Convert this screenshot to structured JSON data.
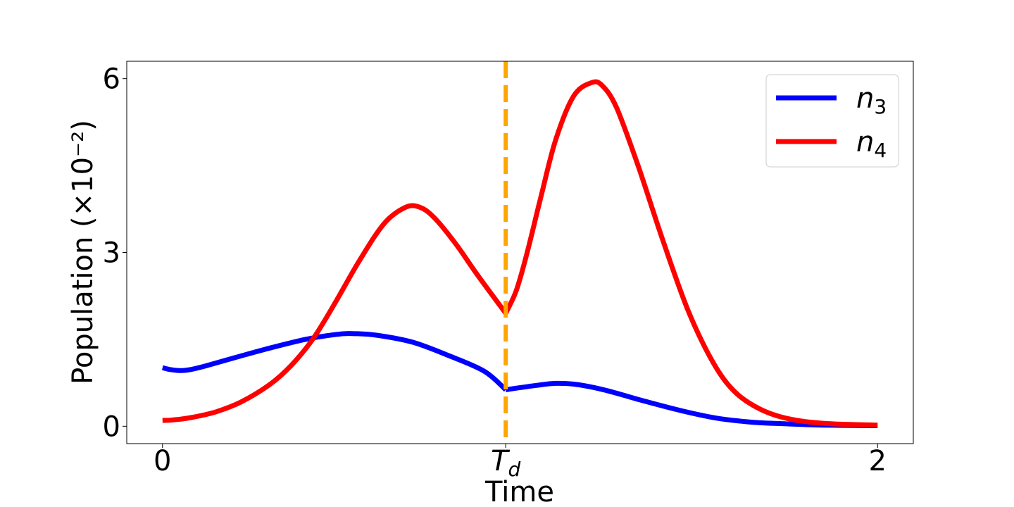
{
  "chart_data": {
    "type": "line",
    "title": "",
    "xlabel": "Time",
    "ylabel": "Population (×10⁻²)",
    "xlim": [
      -0.1,
      2.1
    ],
    "ylim": [
      -0.3,
      6.3
    ],
    "x_ticks": [
      {
        "value": 0,
        "label": "0"
      },
      {
        "value": 0.96,
        "label": "T",
        "sub": "d"
      },
      {
        "value": 2,
        "label": "2"
      }
    ],
    "y_ticks": [
      {
        "value": 0,
        "label": "0"
      },
      {
        "value": 3,
        "label": "3"
      },
      {
        "value": 6,
        "label": "6"
      }
    ],
    "vline": {
      "x": 0.96,
      "color": "#FFA500",
      "style": "dashed"
    },
    "legend_position": "top-right",
    "series": [
      {
        "name": "n",
        "sub": "3",
        "color": "#0000FF",
        "points": [
          [
            0,
            1.01
          ],
          [
            0.02,
            0.98
          ],
          [
            0.05,
            0.96
          ],
          [
            0.08,
            0.98
          ],
          [
            0.12,
            1.04
          ],
          [
            0.2,
            1.18
          ],
          [
            0.3,
            1.35
          ],
          [
            0.4,
            1.5
          ],
          [
            0.48,
            1.58
          ],
          [
            0.53,
            1.6
          ],
          [
            0.6,
            1.57
          ],
          [
            0.7,
            1.45
          ],
          [
            0.8,
            1.22
          ],
          [
            0.9,
            0.95
          ],
          [
            0.96,
            0.63
          ],
          [
            1.04,
            0.7
          ],
          [
            1.1,
            0.74
          ],
          [
            1.16,
            0.72
          ],
          [
            1.24,
            0.62
          ],
          [
            1.35,
            0.43
          ],
          [
            1.45,
            0.27
          ],
          [
            1.55,
            0.14
          ],
          [
            1.65,
            0.07
          ],
          [
            1.75,
            0.04
          ],
          [
            1.85,
            0.02
          ],
          [
            2.0,
            0.01
          ]
        ]
      },
      {
        "name": "n",
        "sub": "4",
        "color": "#FF0000",
        "points": [
          [
            0,
            0.1
          ],
          [
            0.03,
            0.11
          ],
          [
            0.08,
            0.15
          ],
          [
            0.15,
            0.25
          ],
          [
            0.22,
            0.42
          ],
          [
            0.3,
            0.72
          ],
          [
            0.36,
            1.05
          ],
          [
            0.42,
            1.5
          ],
          [
            0.48,
            2.1
          ],
          [
            0.55,
            2.85
          ],
          [
            0.62,
            3.5
          ],
          [
            0.68,
            3.78
          ],
          [
            0.72,
            3.78
          ],
          [
            0.76,
            3.6
          ],
          [
            0.82,
            3.15
          ],
          [
            0.88,
            2.62
          ],
          [
            0.96,
            1.95
          ],
          [
            0.99,
            2.35
          ],
          [
            1.02,
            3.0
          ],
          [
            1.06,
            4.0
          ],
          [
            1.1,
            4.95
          ],
          [
            1.15,
            5.7
          ],
          [
            1.2,
            5.93
          ],
          [
            1.23,
            5.88
          ],
          [
            1.27,
            5.5
          ],
          [
            1.33,
            4.5
          ],
          [
            1.4,
            3.2
          ],
          [
            1.47,
            2.0
          ],
          [
            1.54,
            1.1
          ],
          [
            1.6,
            0.6
          ],
          [
            1.67,
            0.3
          ],
          [
            1.75,
            0.13
          ],
          [
            1.85,
            0.05
          ],
          [
            2.0,
            0.02
          ]
        ]
      }
    ]
  }
}
